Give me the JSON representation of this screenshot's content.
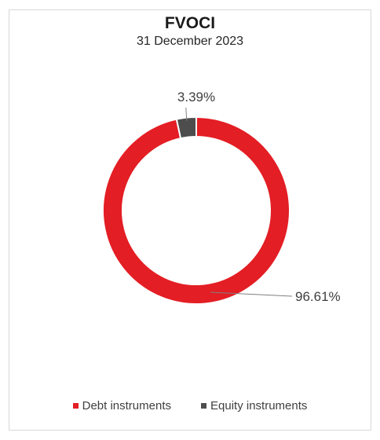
{
  "chart_data": {
    "type": "pie",
    "variant": "donut",
    "title": "FVOCI",
    "subtitle": "31 December 2023",
    "categories": [
      "Debt instruments",
      "Equity instruments"
    ],
    "values": [
      96.61,
      3.39
    ],
    "data_labels": [
      "96.61%",
      "3.39%"
    ],
    "colors": [
      "#e31e24",
      "#4d4d4d"
    ],
    "legend_position": "bottom"
  }
}
